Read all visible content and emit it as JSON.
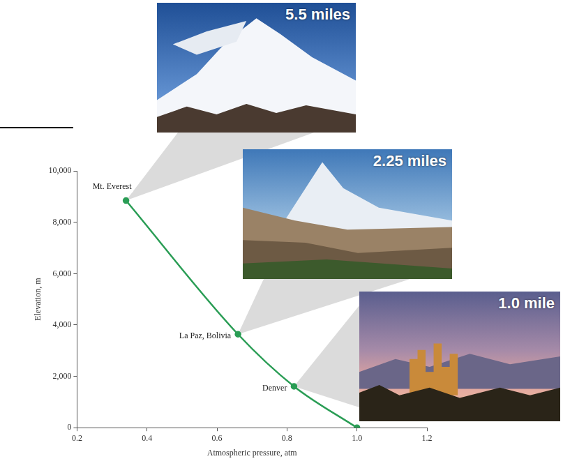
{
  "chart_data": {
    "type": "line",
    "x": [
      0.34,
      0.66,
      0.82,
      1
    ],
    "values": [
      8850,
      3640,
      1610,
      0
    ],
    "point_labels": [
      "Mt. Everest",
      "La Paz, Bolivia",
      "Denver",
      null
    ],
    "color": "#2a9d55",
    "marker": "circle",
    "xlabel": "Atmospheric pressure, atm",
    "ylabel": "Elevation, m",
    "xlim": [
      0.2,
      1.2
    ],
    "xticks": [
      0.2,
      0.4,
      0.6,
      0.8,
      {
        "value": 1,
        "label": "1.0"
      },
      1.2
    ],
    "ylim": [
      0,
      10000
    ],
    "yticks": [
      0,
      {
        "value": 2000,
        "label": "2,000"
      },
      {
        "value": 4000,
        "label": "4,000"
      },
      {
        "value": 6000,
        "label": "6,000"
      },
      {
        "value": 8000,
        "label": "8,000"
      },
      {
        "value": 10000,
        "label": "10,000"
      }
    ],
    "grid": false,
    "annotations": [
      "5.5 miles",
      "2.25 miles",
      "1.0 mile"
    ]
  }
}
